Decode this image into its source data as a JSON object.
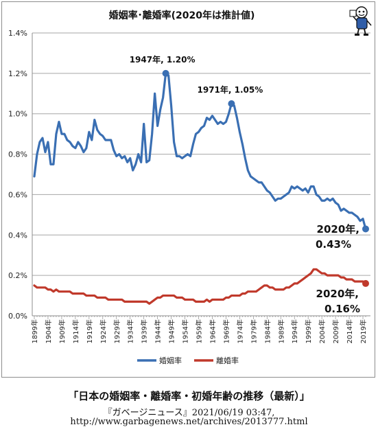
{
  "chart_data": {
    "type": "line",
    "title": "婚姻率･離婚率(2020年は推計値)",
    "xlabel": "",
    "ylabel": "",
    "ylim": [
      0,
      1.4
    ],
    "yticks": [
      "0.0%",
      "0.2%",
      "0.4%",
      "0.6%",
      "0.8%",
      "1.0%",
      "1.2%",
      "1.4%"
    ],
    "xlim": [
      1899,
      2020
    ],
    "xtick_labels": [
      "1899年",
      "1904年",
      "1909年",
      "1914年",
      "1919年",
      "1924年",
      "1929年",
      "1934年",
      "1939年",
      "1944年",
      "1949年",
      "1954年",
      "1959年",
      "1964年",
      "1969年",
      "1974年",
      "1979年",
      "1984年",
      "1989年",
      "1994年",
      "1999年",
      "2004年",
      "2009年",
      "2014年",
      "2019年"
    ],
    "grid": true,
    "legend": "bottom",
    "series": [
      {
        "name": "婚姻率",
        "color": "#3a6fb3",
        "x": [
          1899,
          1900,
          1901,
          1902,
          1903,
          1904,
          1905,
          1906,
          1907,
          1908,
          1909,
          1910,
          1911,
          1912,
          1913,
          1914,
          1915,
          1916,
          1917,
          1918,
          1919,
          1920,
          1921,
          1922,
          1923,
          1924,
          1925,
          1926,
          1927,
          1928,
          1929,
          1930,
          1931,
          1932,
          1933,
          1934,
          1935,
          1936,
          1937,
          1938,
          1939,
          1940,
          1941,
          1942,
          1943,
          1944,
          1945,
          1946,
          1947,
          1948,
          1949,
          1950,
          1951,
          1952,
          1953,
          1954,
          1955,
          1956,
          1957,
          1958,
          1959,
          1960,
          1961,
          1962,
          1963,
          1964,
          1965,
          1966,
          1967,
          1968,
          1969,
          1970,
          1971,
          1972,
          1973,
          1974,
          1975,
          1976,
          1977,
          1978,
          1979,
          1980,
          1981,
          1982,
          1983,
          1984,
          1985,
          1986,
          1987,
          1988,
          1989,
          1990,
          1991,
          1992,
          1993,
          1994,
          1995,
          1996,
          1997,
          1998,
          1999,
          2000,
          2001,
          2002,
          2003,
          2004,
          2005,
          2006,
          2007,
          2008,
          2009,
          2010,
          2011,
          2012,
          2013,
          2014,
          2015,
          2016,
          2017,
          2018,
          2019,
          2020
        ],
        "values": [
          0.69,
          0.8,
          0.86,
          0.88,
          0.81,
          0.86,
          0.75,
          0.75,
          0.9,
          0.96,
          0.9,
          0.9,
          0.87,
          0.86,
          0.84,
          0.83,
          0.86,
          0.84,
          0.81,
          0.83,
          0.91,
          0.87,
          0.97,
          0.92,
          0.9,
          0.89,
          0.87,
          0.87,
          0.87,
          0.82,
          0.79,
          0.8,
          0.78,
          0.79,
          0.76,
          0.78,
          0.72,
          0.75,
          0.8,
          0.76,
          0.95,
          0.76,
          0.77,
          0.9,
          1.1,
          0.94,
          1.02,
          1.08,
          1.2,
          1.19,
          1.04,
          0.86,
          0.79,
          0.79,
          0.78,
          0.79,
          0.8,
          0.79,
          0.85,
          0.9,
          0.91,
          0.93,
          0.94,
          0.98,
          0.97,
          0.99,
          0.97,
          0.95,
          0.96,
          0.95,
          0.96,
          1.0,
          1.05,
          1.04,
          0.98,
          0.91,
          0.85,
          0.78,
          0.72,
          0.69,
          0.68,
          0.67,
          0.66,
          0.66,
          0.64,
          0.62,
          0.61,
          0.59,
          0.57,
          0.58,
          0.58,
          0.59,
          0.6,
          0.61,
          0.64,
          0.63,
          0.64,
          0.63,
          0.62,
          0.63,
          0.61,
          0.64,
          0.64,
          0.6,
          0.59,
          0.57,
          0.57,
          0.58,
          0.57,
          0.58,
          0.56,
          0.55,
          0.52,
          0.53,
          0.52,
          0.51,
          0.51,
          0.5,
          0.49,
          0.47,
          0.48,
          0.43
        ]
      },
      {
        "name": "離婚率",
        "color": "#c0392b",
        "x": [
          1899,
          1900,
          1901,
          1902,
          1903,
          1904,
          1905,
          1906,
          1907,
          1908,
          1909,
          1910,
          1911,
          1912,
          1913,
          1914,
          1915,
          1916,
          1917,
          1918,
          1919,
          1920,
          1921,
          1922,
          1923,
          1924,
          1925,
          1926,
          1927,
          1928,
          1929,
          1930,
          1931,
          1932,
          1933,
          1934,
          1935,
          1936,
          1937,
          1938,
          1939,
          1940,
          1941,
          1942,
          1943,
          1944,
          1945,
          1946,
          1947,
          1948,
          1949,
          1950,
          1951,
          1952,
          1953,
          1954,
          1955,
          1956,
          1957,
          1958,
          1959,
          1960,
          1961,
          1962,
          1963,
          1964,
          1965,
          1966,
          1967,
          1968,
          1969,
          1970,
          1971,
          1972,
          1973,
          1974,
          1975,
          1976,
          1977,
          1978,
          1979,
          1980,
          1981,
          1982,
          1983,
          1984,
          1985,
          1986,
          1987,
          1988,
          1989,
          1990,
          1991,
          1992,
          1993,
          1994,
          1995,
          1996,
          1997,
          1998,
          1999,
          2000,
          2001,
          2002,
          2003,
          2004,
          2005,
          2006,
          2007,
          2008,
          2009,
          2010,
          2011,
          2012,
          2013,
          2014,
          2015,
          2016,
          2017,
          2018,
          2019,
          2020
        ],
        "values": [
          0.15,
          0.14,
          0.14,
          0.14,
          0.14,
          0.13,
          0.13,
          0.12,
          0.13,
          0.12,
          0.12,
          0.12,
          0.12,
          0.12,
          0.11,
          0.11,
          0.11,
          0.11,
          0.11,
          0.1,
          0.1,
          0.1,
          0.1,
          0.09,
          0.09,
          0.09,
          0.09,
          0.08,
          0.08,
          0.08,
          0.08,
          0.08,
          0.08,
          0.07,
          0.07,
          0.07,
          0.07,
          0.07,
          0.07,
          0.07,
          0.07,
          0.07,
          0.06,
          0.07,
          0.08,
          0.09,
          0.09,
          0.1,
          0.1,
          0.1,
          0.1,
          0.1,
          0.09,
          0.09,
          0.09,
          0.08,
          0.08,
          0.08,
          0.08,
          0.07,
          0.07,
          0.07,
          0.07,
          0.08,
          0.07,
          0.08,
          0.08,
          0.08,
          0.08,
          0.08,
          0.09,
          0.09,
          0.1,
          0.1,
          0.1,
          0.1,
          0.11,
          0.11,
          0.12,
          0.12,
          0.12,
          0.12,
          0.13,
          0.14,
          0.15,
          0.15,
          0.14,
          0.14,
          0.13,
          0.13,
          0.13,
          0.13,
          0.14,
          0.14,
          0.15,
          0.16,
          0.16,
          0.17,
          0.18,
          0.19,
          0.2,
          0.21,
          0.23,
          0.23,
          0.22,
          0.21,
          0.21,
          0.2,
          0.2,
          0.2,
          0.2,
          0.2,
          0.19,
          0.19,
          0.18,
          0.18,
          0.18,
          0.17,
          0.17,
          0.17,
          0.17,
          0.16
        ]
      }
    ],
    "annotations": [
      {
        "text": "1947年, 1.20%",
        "x": 1947,
        "y": 1.2,
        "series": 0
      },
      {
        "text": "1971年, 1.05%",
        "x": 1971,
        "y": 1.05,
        "series": 0
      },
      {
        "line1": "2020年,",
        "line2": "0.43%",
        "x": 2020,
        "y": 0.43,
        "series": 0
      },
      {
        "line1": "2020年,",
        "line2": "0.16%",
        "x": 2020,
        "y": 0.16,
        "series": 1
      }
    ]
  },
  "caption": {
    "main": "「日本の婚姻率・離婚率・初婚年齢の推移（最新）」",
    "source": "『ガベージニュース』2021/06/19 03:47,",
    "url": "http://www.garbagenews.net/archives/2013777.html"
  },
  "mascot": {
    "icon": "mascot-icon"
  }
}
